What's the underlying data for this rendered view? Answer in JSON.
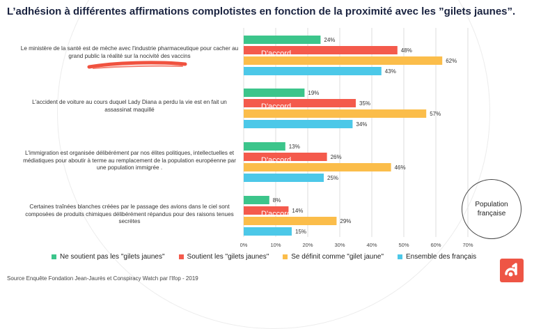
{
  "title": "L’adhésion à différentes affirmations complotistes en fonction de la proximité avec les ”gilets jaunes”.",
  "population_label": "Population française",
  "source": "Source Enquête Fondation Jean-Jaurès et Conspiracy Watch par l'Ifop - 2019",
  "colors": {
    "green": "#3cc58b",
    "red": "#f45a4c",
    "yellow": "#fbbd4a",
    "blue": "#4cc8e8",
    "logo": "#ee5545"
  },
  "chart_data": {
    "type": "bar",
    "orientation": "horizontal",
    "categories": [
      "Le ministère de la santé est de mèche avec l'industrie pharmaceutique pour cacher au grand public la réalité sur la nocivité des vaccins",
      "L'accident de voiture au cours duquel Lady Diana a perdu la vie est en fait un assassinat maquillé",
      "L'immigration est organisée délibérément par nos élites politiques, intellectuelles et médiatiques pour aboutir à terme au remplacement de la population européenne par une population immigrée .",
      "Certaines traînées blanches créées par le passage des avions dans le ciel sont composées de produits chimiques délibérément répandus pour des raisons tenues secrètes"
    ],
    "series": [
      {
        "name": "Ne soutient pas les \"gilets jaunes\"",
        "color": "#3cc58b",
        "values": [
          24,
          19,
          13,
          8
        ]
      },
      {
        "name": "Soutient les \"gilets jaunes\"",
        "color": "#f45a4c",
        "values": [
          48,
          35,
          26,
          14
        ]
      },
      {
        "name": "Se définit comme \"gilet jaune\"",
        "color": "#fbbd4a",
        "values": [
          62,
          57,
          46,
          29
        ]
      },
      {
        "name": "Ensemble des français",
        "color": "#4cc8e8",
        "values": [
          43,
          34,
          25,
          15
        ]
      }
    ],
    "bar_annotation": "D'accord",
    "xlim": [
      0,
      70
    ],
    "xticks": [
      "0%",
      "10%",
      "20%",
      "30%",
      "40%",
      "50%",
      "60%",
      "70%"
    ],
    "value_suffix": "%",
    "grid": true,
    "legend_position": "bottom"
  }
}
